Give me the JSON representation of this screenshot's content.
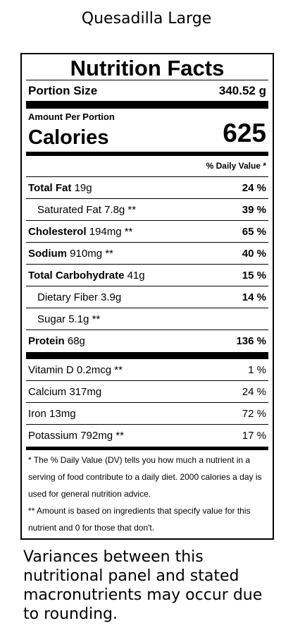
{
  "page_title": "Quesadilla Large",
  "label": {
    "heading": "Nutrition Facts",
    "portion_label": "Portion Size",
    "portion_value": "340.52 g",
    "amount_per": "Amount Per Portion",
    "calories_label": "Calories",
    "calories_value": "625",
    "dv_header": "% Daily Value *",
    "nutrients": [
      {
        "name": "Total Fat",
        "amount": "19g",
        "pct": "24 %"
      },
      {
        "name": "Saturated Fat",
        "amount": "7.8g **",
        "pct": "39 %"
      },
      {
        "name": "Cholesterol",
        "amount": "194mg **",
        "pct": "65 %"
      },
      {
        "name": "Sodium",
        "amount": "910mg **",
        "pct": "40 %"
      },
      {
        "name": "Total Carbohydrate",
        "amount": "41g",
        "pct": "15 %"
      },
      {
        "name": "Dietary Fiber",
        "amount": "3.9g",
        "pct": "14 %"
      },
      {
        "name": "Sugar",
        "amount": "5.1g **",
        "pct": ""
      },
      {
        "name": "Protein",
        "amount": "68g",
        "pct": "136 %"
      }
    ],
    "vitamins": [
      {
        "name": "Vitamin D",
        "amount": "0.2mcg **",
        "pct": "1 %"
      },
      {
        "name": "Calcium",
        "amount": "317mg",
        "pct": "24 %"
      },
      {
        "name": "Iron",
        "amount": "13mg",
        "pct": "72 %"
      },
      {
        "name": "Potassium",
        "amount": "792mg **",
        "pct": "17 %"
      }
    ],
    "footnote_1": "* The % Daily Value (DV) tells you how much a nutrient in a serving of food contribute to a daily diet. 2000 calories a day is used for general nutrition advice.",
    "footnote_2": "** Amount is based on ingredients that specify value for this nutrient and 0 for those that don't."
  },
  "variance_note": "Variances between this nutritional panel and stated macronutrients may occur due to rounding."
}
